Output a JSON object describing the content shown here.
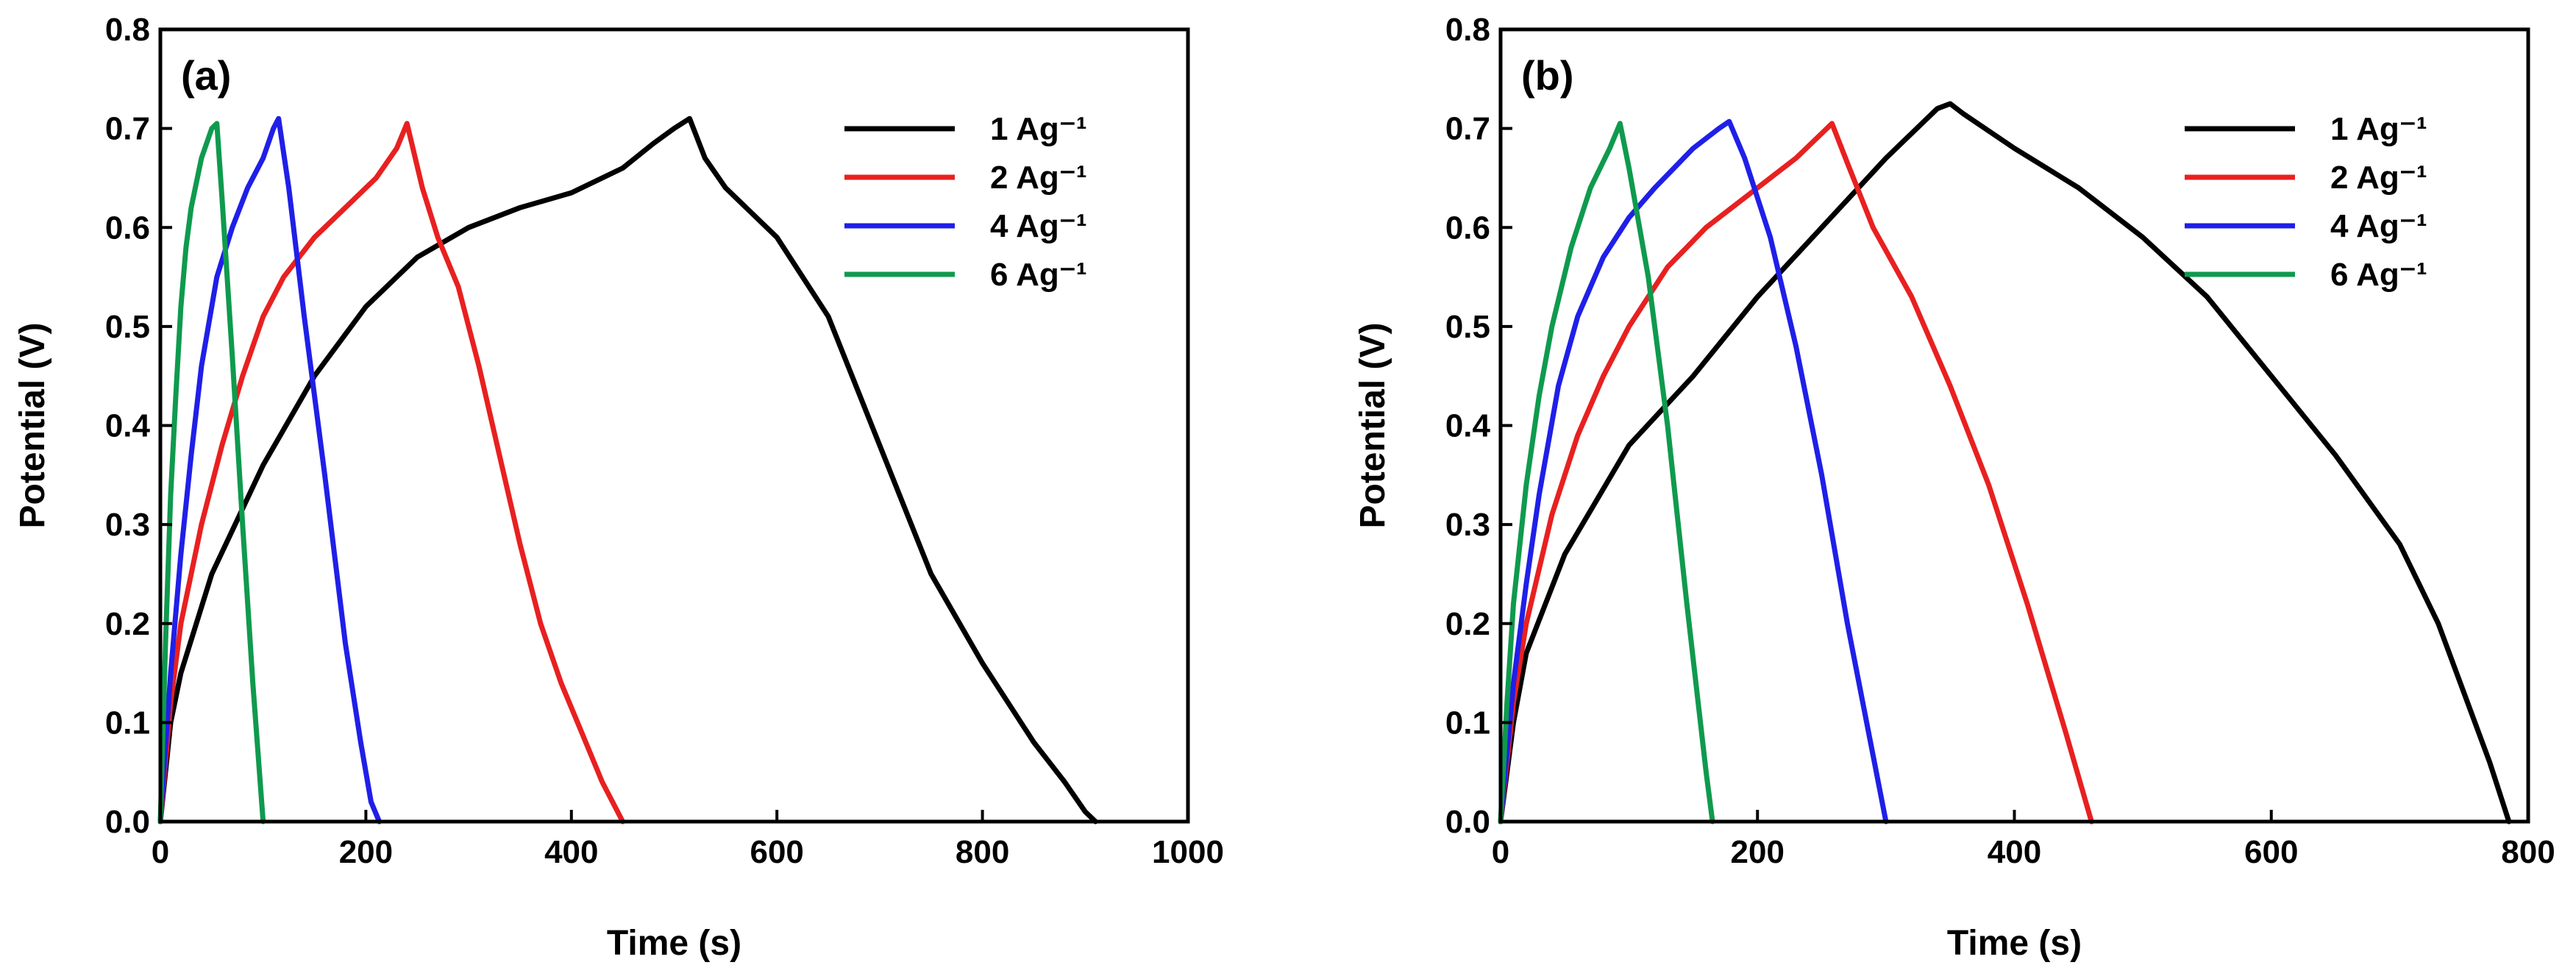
{
  "figure": {
    "colors": {
      "background": "#ffffff",
      "axis": "#000000"
    }
  },
  "chart_data": [
    {
      "type": "line",
      "panel_label": "(a)",
      "xlabel": "Time (s)",
      "ylabel": "Potential (V)",
      "xlim": [
        0,
        1000
      ],
      "ylim": [
        0,
        0.8
      ],
      "xticks": [
        0,
        200,
        400,
        600,
        800,
        1000
      ],
      "yticks": [
        0.0,
        0.1,
        0.2,
        0.3,
        0.4,
        0.5,
        0.6,
        0.7,
        0.8
      ],
      "legend_position": "top-right",
      "grid": false,
      "series": [
        {
          "name": "1 Ag⁻¹",
          "color": "#000000",
          "x": [
            0,
            10,
            20,
            50,
            100,
            150,
            200,
            250,
            300,
            350,
            400,
            450,
            480,
            500,
            515,
            530,
            550,
            600,
            650,
            700,
            750,
            800,
            850,
            880,
            900,
            910
          ],
          "y": [
            0,
            0.1,
            0.15,
            0.25,
            0.36,
            0.45,
            0.52,
            0.57,
            0.6,
            0.62,
            0.635,
            0.66,
            0.685,
            0.7,
            0.71,
            0.67,
            0.64,
            0.59,
            0.51,
            0.38,
            0.25,
            0.16,
            0.08,
            0.04,
            0.01,
            0.0
          ]
        },
        {
          "name": "2 Ag⁻¹",
          "color": "#e82020",
          "x": [
            0,
            10,
            20,
            40,
            60,
            80,
            100,
            120,
            150,
            180,
            210,
            230,
            240,
            255,
            270,
            290,
            310,
            330,
            350,
            370,
            390,
            410,
            430,
            450
          ],
          "y": [
            0,
            0.12,
            0.2,
            0.3,
            0.38,
            0.45,
            0.51,
            0.55,
            0.59,
            0.62,
            0.65,
            0.68,
            0.705,
            0.64,
            0.59,
            0.54,
            0.46,
            0.37,
            0.28,
            0.2,
            0.14,
            0.09,
            0.04,
            0.0
          ]
        },
        {
          "name": "4 Ag⁻¹",
          "color": "#1f1fe8",
          "x": [
            0,
            10,
            20,
            30,
            40,
            55,
            70,
            85,
            100,
            110,
            115,
            125,
            140,
            160,
            180,
            195,
            205,
            213
          ],
          "y": [
            0,
            0.15,
            0.27,
            0.37,
            0.46,
            0.55,
            0.6,
            0.64,
            0.67,
            0.7,
            0.71,
            0.64,
            0.51,
            0.35,
            0.18,
            0.08,
            0.02,
            0.0
          ]
        },
        {
          "name": "6 Ag⁻¹",
          "color": "#0f9a4e",
          "x": [
            0,
            5,
            10,
            15,
            20,
            25,
            30,
            40,
            50,
            55,
            60,
            70,
            80,
            90,
            100
          ],
          "y": [
            0,
            0.18,
            0.33,
            0.43,
            0.52,
            0.58,
            0.62,
            0.67,
            0.7,
            0.705,
            0.63,
            0.47,
            0.3,
            0.14,
            0.0
          ]
        }
      ]
    },
    {
      "type": "line",
      "panel_label": "(b)",
      "xlabel": "Time (s)",
      "ylabel": "Potential (V)",
      "xlim": [
        0,
        800
      ],
      "ylim": [
        0,
        0.8
      ],
      "xticks": [
        0,
        200,
        400,
        600,
        800
      ],
      "yticks": [
        0.0,
        0.1,
        0.2,
        0.3,
        0.4,
        0.5,
        0.6,
        0.7,
        0.8
      ],
      "legend_position": "top-right",
      "grid": false,
      "series": [
        {
          "name": "1 Ag⁻¹",
          "color": "#000000",
          "x": [
            0,
            10,
            20,
            50,
            100,
            150,
            200,
            250,
            300,
            340,
            350,
            360,
            400,
            450,
            500,
            550,
            600,
            650,
            700,
            730,
            750,
            770,
            780,
            785
          ],
          "y": [
            0,
            0.1,
            0.17,
            0.27,
            0.38,
            0.45,
            0.53,
            0.6,
            0.67,
            0.72,
            0.725,
            0.715,
            0.68,
            0.64,
            0.59,
            0.53,
            0.45,
            0.37,
            0.28,
            0.2,
            0.13,
            0.06,
            0.02,
            0.0
          ]
        },
        {
          "name": "2 Ag⁻¹",
          "color": "#e82020",
          "x": [
            0,
            10,
            20,
            40,
            60,
            80,
            100,
            130,
            160,
            200,
            230,
            250,
            258,
            270,
            290,
            320,
            350,
            380,
            410,
            440,
            460
          ],
          "y": [
            0,
            0.12,
            0.2,
            0.31,
            0.39,
            0.45,
            0.5,
            0.56,
            0.6,
            0.64,
            0.67,
            0.695,
            0.705,
            0.665,
            0.6,
            0.53,
            0.44,
            0.34,
            0.22,
            0.09,
            0.0
          ]
        },
        {
          "name": "4 Ag⁻¹",
          "color": "#1f1fe8",
          "x": [
            0,
            10,
            20,
            30,
            45,
            60,
            80,
            100,
            120,
            150,
            170,
            178,
            190,
            210,
            230,
            250,
            270,
            285,
            300
          ],
          "y": [
            0,
            0.14,
            0.24,
            0.33,
            0.44,
            0.51,
            0.57,
            0.61,
            0.64,
            0.68,
            0.7,
            0.707,
            0.67,
            0.59,
            0.48,
            0.35,
            0.2,
            0.1,
            0.0
          ]
        },
        {
          "name": "6 Ag⁻¹",
          "color": "#0f9a4e",
          "x": [
            0,
            5,
            10,
            20,
            30,
            40,
            55,
            70,
            85,
            93,
            100,
            115,
            130,
            145,
            160,
            165
          ],
          "y": [
            0,
            0.12,
            0.22,
            0.34,
            0.43,
            0.5,
            0.58,
            0.64,
            0.68,
            0.705,
            0.66,
            0.55,
            0.4,
            0.22,
            0.05,
            0.0
          ]
        }
      ]
    }
  ]
}
